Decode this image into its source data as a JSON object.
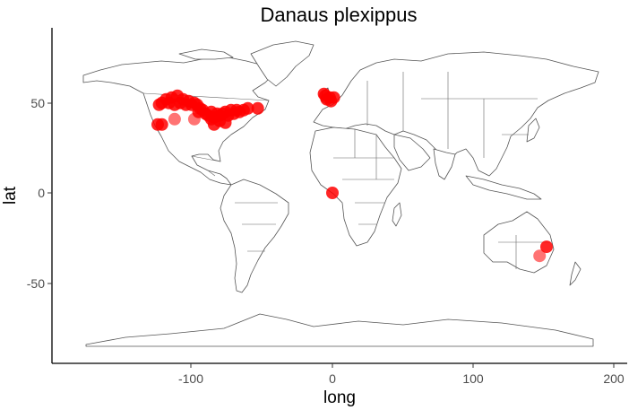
{
  "chart_data": {
    "type": "scatter",
    "title": "Danaus plexippus",
    "xlabel": "long",
    "ylabel": "lat",
    "xlim": [
      -197,
      206
    ],
    "ylim": [
      -93,
      90
    ],
    "x_ticks": [
      -100,
      0,
      100,
      200
    ],
    "y_ticks": [
      -50,
      0,
      50
    ],
    "x_tick_labels": [
      "-100",
      "0",
      "100",
      "200"
    ],
    "y_tick_labels": [
      "-50",
      "0",
      "50"
    ],
    "grid": false,
    "legend": "none",
    "colors": {
      "point": "#ff0000",
      "land_fill": "#ffffff",
      "land_stroke": "#555555"
    },
    "background": "world map (country outlines)",
    "points": [
      {
        "x": -123,
        "y": 49
      },
      {
        "x": -121,
        "y": 50
      },
      {
        "x": -118,
        "y": 52
      },
      {
        "x": -116,
        "y": 50
      },
      {
        "x": -114,
        "y": 53
      },
      {
        "x": -112,
        "y": 49
      },
      {
        "x": -110,
        "y": 54
      },
      {
        "x": -108,
        "y": 50
      },
      {
        "x": -106,
        "y": 52
      },
      {
        "x": -104,
        "y": 49
      },
      {
        "x": -102,
        "y": 51
      },
      {
        "x": -100,
        "y": 49
      },
      {
        "x": -98,
        "y": 50
      },
      {
        "x": -96,
        "y": 49
      },
      {
        "x": -94,
        "y": 47
      },
      {
        "x": -92,
        "y": 46
      },
      {
        "x": -90,
        "y": 44
      },
      {
        "x": -88,
        "y": 43
      },
      {
        "x": -86,
        "y": 45
      },
      {
        "x": -84,
        "y": 42
      },
      {
        "x": -82,
        "y": 44
      },
      {
        "x": -80,
        "y": 43
      },
      {
        "x": -78,
        "y": 44
      },
      {
        "x": -76,
        "y": 45
      },
      {
        "x": -74,
        "y": 43
      },
      {
        "x": -72,
        "y": 46
      },
      {
        "x": -70,
        "y": 44
      },
      {
        "x": -68,
        "y": 46
      },
      {
        "x": -66,
        "y": 45
      },
      {
        "x": -63,
        "y": 46
      },
      {
        "x": -60,
        "y": 47
      },
      {
        "x": -53,
        "y": 47
      },
      {
        "x": -80,
        "y": 40
      },
      {
        "x": -84,
        "y": 38
      },
      {
        "x": -86,
        "y": 41
      },
      {
        "x": -76,
        "y": 39
      },
      {
        "x": -95,
        "y": 45
      },
      {
        "x": -112,
        "y": 41,
        "alpha": 0.55
      },
      {
        "x": -98,
        "y": 41,
        "alpha": 0.55
      },
      {
        "x": -121,
        "y": 38
      },
      {
        "x": -124,
        "y": 38
      },
      {
        "x": -5,
        "y": 54
      },
      {
        "x": -4,
        "y": 52
      },
      {
        "x": -2,
        "y": 53
      },
      {
        "x": -1,
        "y": 51
      },
      {
        "x": 1,
        "y": 53
      },
      {
        "x": -6,
        "y": 55
      },
      {
        "x": 0,
        "y": 0
      },
      {
        "x": 152,
        "y": -30
      },
      {
        "x": 147,
        "y": -35,
        "alpha": 0.55
      }
    ]
  }
}
